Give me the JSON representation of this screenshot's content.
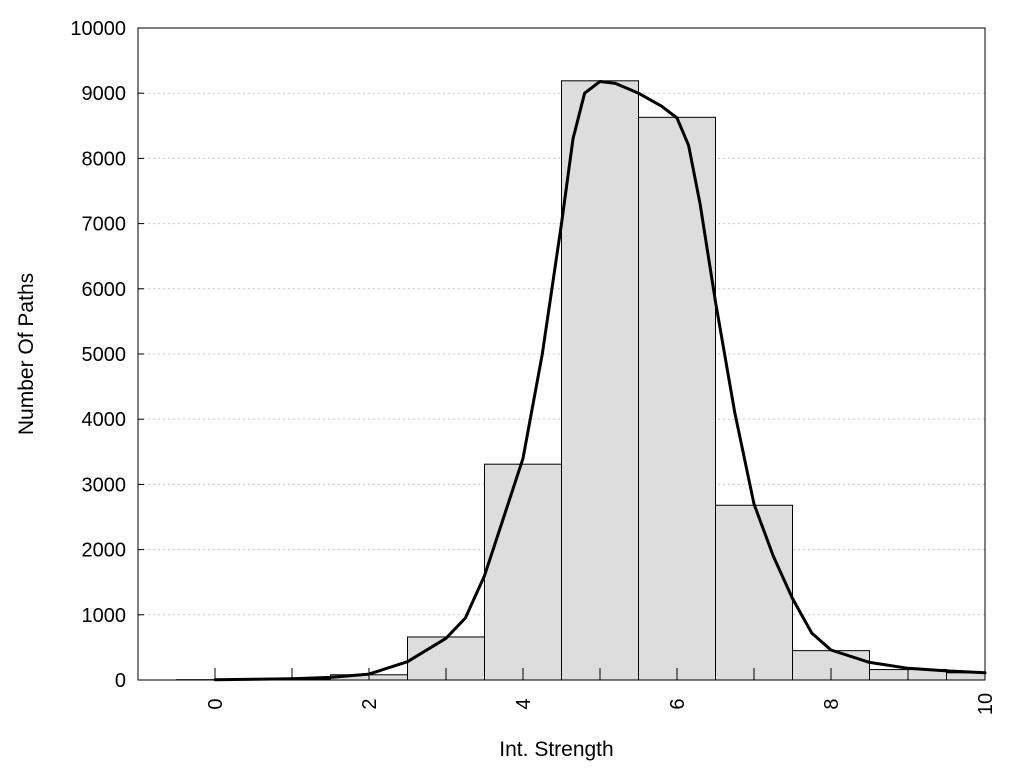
{
  "chart_data": {
    "type": "bar",
    "xlabel": "Int. Strength",
    "ylabel": "Number Of Paths",
    "xlim": [
      -1,
      10
    ],
    "ylim": [
      0,
      10000
    ],
    "x_ticks": [
      0,
      2,
      4,
      6,
      8,
      10
    ],
    "y_ticks": [
      0,
      1000,
      2000,
      3000,
      4000,
      5000,
      6000,
      7000,
      8000,
      9000,
      10000
    ],
    "grid": "horizontal dotted",
    "bar_width": 1,
    "bar_color": "#dddddd",
    "curve_color": "#000000",
    "series": [
      {
        "type": "bar",
        "x": [
          0,
          1,
          2,
          3,
          4,
          5,
          6,
          7,
          8,
          9,
          10
        ],
        "values": [
          5,
          15,
          80,
          660,
          3310,
          9190,
          8630,
          2680,
          450,
          160,
          110
        ]
      },
      {
        "type": "line",
        "x": [
          0,
          0.5,
          1,
          1.5,
          2,
          2.5,
          3,
          3.25,
          3.5,
          3.75,
          4,
          4.25,
          4.5,
          4.65,
          4.8,
          5,
          5.2,
          5.5,
          5.8,
          6,
          6.15,
          6.3,
          6.5,
          6.75,
          7,
          7.25,
          7.5,
          7.75,
          8,
          8.5,
          9,
          9.5,
          10
        ],
        "values": [
          5,
          10,
          20,
          40,
          90,
          280,
          640,
          950,
          1600,
          2500,
          3400,
          5000,
          7000,
          8300,
          9000,
          9180,
          9150,
          9000,
          8800,
          8620,
          8200,
          7300,
          5800,
          4100,
          2700,
          1900,
          1250,
          720,
          460,
          270,
          180,
          140,
          110
        ]
      }
    ]
  }
}
